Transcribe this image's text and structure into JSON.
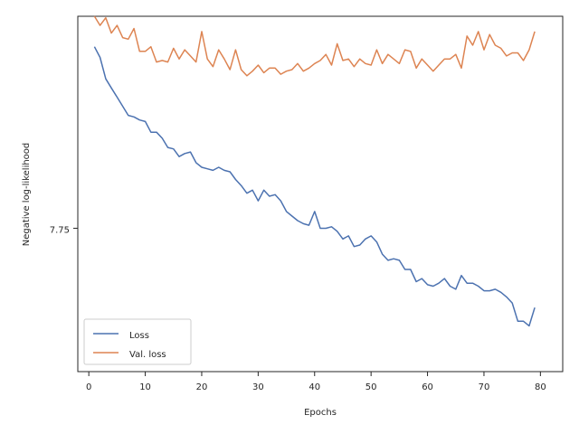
{
  "chart_data": {
    "type": "line",
    "xlabel": "Epochs",
    "ylabel": "Negative log-likelihood",
    "xlim": [
      -1.95,
      83.95
    ],
    "ylim": [
      7.656,
      7.889
    ],
    "xticks": [
      0,
      10,
      20,
      30,
      40,
      50,
      60,
      70,
      80
    ],
    "yticks": [
      7.75
    ],
    "ytick_labels": [
      "7.75"
    ],
    "grid": false,
    "legend_position": "lower left",
    "series": [
      {
        "name": "Loss",
        "color": "#4c72b0",
        "x": [
          1,
          2,
          3,
          4,
          5,
          6,
          7,
          8,
          9,
          10,
          11,
          12,
          13,
          14,
          15,
          16,
          17,
          18,
          19,
          20,
          21,
          22,
          23,
          24,
          25,
          26,
          27,
          28,
          29,
          30,
          31,
          32,
          33,
          34,
          35,
          36,
          37,
          38,
          39,
          40,
          41,
          42,
          43,
          44,
          45,
          46,
          47,
          48,
          49,
          50,
          51,
          52,
          53,
          54,
          55,
          56,
          57,
          58,
          59,
          60,
          61,
          62,
          63,
          64,
          65,
          66,
          67,
          68,
          69,
          70,
          71,
          72,
          73,
          74,
          75,
          76,
          77,
          78,
          79
        ],
        "values": [
          7.869,
          7.862,
          7.848,
          7.842,
          7.836,
          7.83,
          7.824,
          7.823,
          7.821,
          7.82,
          7.813,
          7.813,
          7.809,
          7.803,
          7.802,
          7.797,
          7.799,
          7.8,
          7.793,
          7.79,
          7.789,
          7.788,
          7.79,
          7.788,
          7.787,
          7.782,
          7.778,
          7.773,
          7.775,
          7.768,
          7.775,
          7.771,
          7.772,
          7.768,
          7.761,
          7.758,
          7.755,
          7.753,
          7.752,
          7.761,
          7.75,
          7.75,
          7.751,
          7.748,
          7.743,
          7.745,
          7.738,
          7.739,
          7.743,
          7.745,
          7.741,
          7.733,
          7.729,
          7.73,
          7.729,
          7.723,
          7.723,
          7.715,
          7.717,
          7.713,
          7.712,
          7.714,
          7.717,
          7.712,
          7.71,
          7.719,
          7.714,
          7.714,
          7.712,
          7.709,
          7.709,
          7.71,
          7.708,
          7.705,
          7.701,
          7.689,
          7.689,
          7.686,
          7.698
        ]
      },
      {
        "name": "Val. loss",
        "color": "#dd8452",
        "x": [
          1,
          2,
          3,
          4,
          5,
          6,
          7,
          8,
          9,
          10,
          11,
          12,
          13,
          14,
          15,
          16,
          17,
          18,
          19,
          20,
          21,
          22,
          23,
          24,
          25,
          26,
          27,
          28,
          29,
          30,
          31,
          32,
          33,
          34,
          35,
          36,
          37,
          38,
          39,
          40,
          41,
          42,
          43,
          44,
          45,
          46,
          47,
          48,
          49,
          50,
          51,
          52,
          53,
          54,
          55,
          56,
          57,
          58,
          59,
          60,
          61,
          62,
          63,
          64,
          65,
          66,
          67,
          68,
          69,
          70,
          71,
          72,
          73,
          74,
          75,
          76,
          77,
          78,
          79
        ],
        "values": [
          7.889,
          7.883,
          7.888,
          7.878,
          7.883,
          7.875,
          7.874,
          7.881,
          7.866,
          7.866,
          7.869,
          7.859,
          7.86,
          7.859,
          7.868,
          7.861,
          7.867,
          7.863,
          7.859,
          7.879,
          7.861,
          7.856,
          7.867,
          7.861,
          7.854,
          7.867,
          7.854,
          7.85,
          7.853,
          7.857,
          7.852,
          7.855,
          7.855,
          7.851,
          7.853,
          7.854,
          7.858,
          7.853,
          7.855,
          7.858,
          7.86,
          7.864,
          7.857,
          7.871,
          7.86,
          7.861,
          7.856,
          7.861,
          7.858,
          7.857,
          7.867,
          7.858,
          7.864,
          7.861,
          7.858,
          7.867,
          7.866,
          7.855,
          7.861,
          7.857,
          7.853,
          7.857,
          7.861,
          7.861,
          7.864,
          7.855,
          7.876,
          7.87,
          7.879,
          7.867,
          7.877,
          7.87,
          7.868,
          7.863,
          7.865,
          7.865,
          7.86,
          7.867,
          7.879
        ]
      }
    ]
  }
}
